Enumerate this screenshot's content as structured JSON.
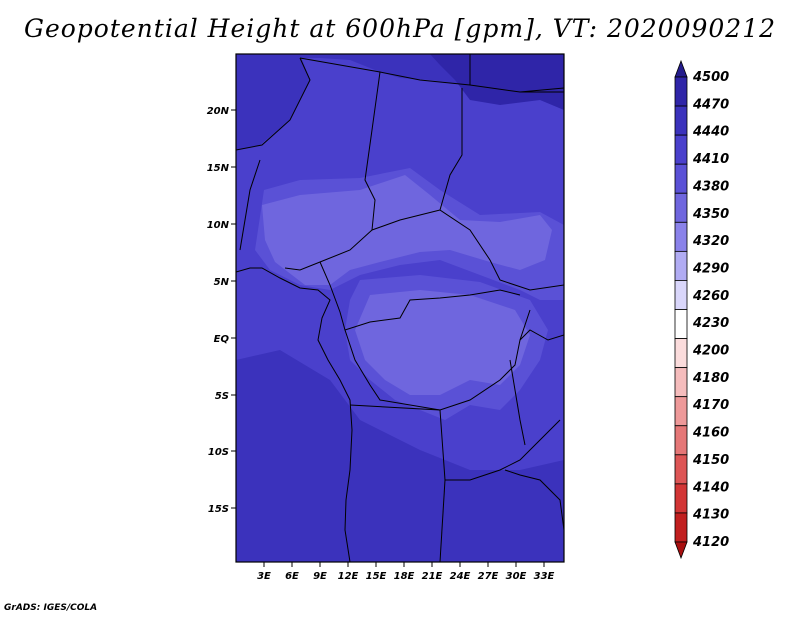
{
  "title": "Geopotential Height at 600hPa [gpm], VT: 2020090212",
  "footer": "GrADS: IGES/COLA",
  "map": {
    "lat_ticks": [
      "20N",
      "15N",
      "10N",
      "5N",
      "EQ",
      "5S",
      "10S",
      "15S"
    ],
    "lon_ticks": [
      "3E",
      "6E",
      "9E",
      "12E",
      "15E",
      "18E",
      "21E",
      "24E",
      "27E",
      "30E",
      "33E"
    ]
  },
  "colorbar": {
    "levels": [
      "4500",
      "4470",
      "4440",
      "4410",
      "4380",
      "4350",
      "4320",
      "4290",
      "4260",
      "4230",
      "4200",
      "4180",
      "4170",
      "4160",
      "4150",
      "4140",
      "4130",
      "4120"
    ],
    "colors": [
      "#241c8c",
      "#2f25a8",
      "#3b32bc",
      "#4a40cc",
      "#5a51d6",
      "#6f66de",
      "#8a82ea",
      "#b1acf3",
      "#d9d6fa",
      "#ffffff",
      "#fbdcdc",
      "#f5bcbc",
      "#ee9999",
      "#e57777",
      "#dd5555",
      "#d23535",
      "#c11f1f",
      "#a80f0f"
    ]
  }
}
